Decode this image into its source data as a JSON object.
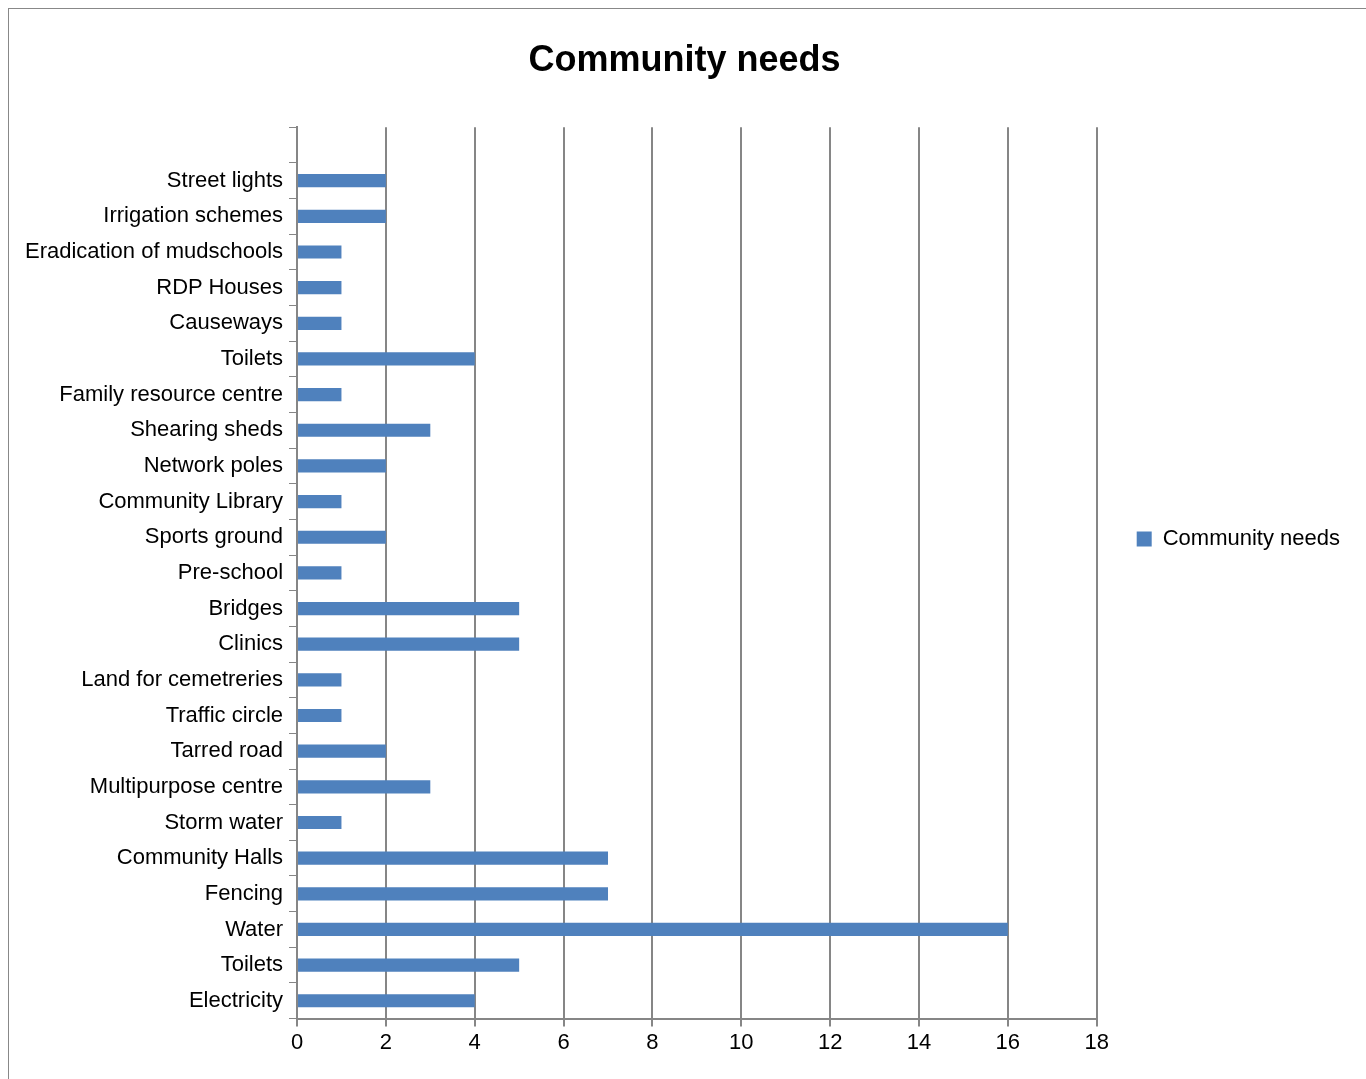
{
  "chart_data": {
    "type": "bar",
    "orientation": "horizontal",
    "title": "Community needs",
    "categories": [
      null,
      "Street lights",
      "Irrigation schemes",
      "Eradication of mudschools",
      "RDP Houses",
      "Causeways",
      "Toilets",
      "Family resource centre",
      "Shearing sheds",
      "Network poles",
      "Community Library",
      "Sports ground",
      "Pre-school",
      "Bridges",
      "Clinics",
      "Land for cemetreries",
      "Traffic circle",
      "Tarred road",
      "Multipurpose centre",
      "Storm water",
      "Community Halls",
      "Fencing",
      "Water",
      "Toilets",
      "Electricity"
    ],
    "series": [
      {
        "name": "Community needs",
        "color": "#4f81bd",
        "values": [
          null,
          2,
          2,
          1,
          1,
          1,
          4,
          1,
          3,
          2,
          1,
          2,
          1,
          5,
          5,
          1,
          1,
          2,
          3,
          1,
          7,
          7,
          16,
          5,
          4
        ]
      }
    ],
    "xlim": [
      0,
      18
    ],
    "xticks": [
      0,
      2,
      4,
      6,
      8,
      10,
      12,
      14,
      16,
      18
    ],
    "grid": "x",
    "legend": "right"
  }
}
